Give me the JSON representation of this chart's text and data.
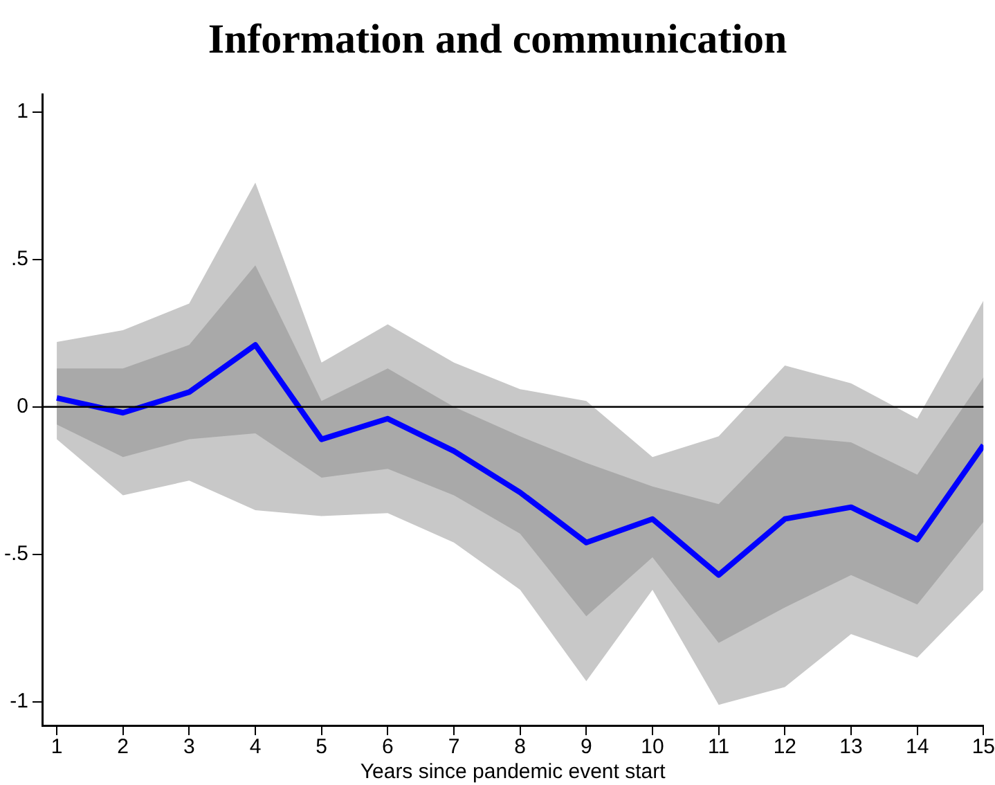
{
  "chart_data": {
    "type": "line",
    "title": "Information and communication",
    "xlabel": "Years since pandemic event start",
    "x": [
      1,
      2,
      3,
      4,
      5,
      6,
      7,
      8,
      9,
      10,
      11,
      12,
      13,
      14,
      15
    ],
    "series": [
      {
        "color": "#c8c8c8",
        "values": [
          null,
          null,
          null,
          null,
          null,
          null,
          null,
          null,
          null,
          null,
          null,
          null,
          null,
          null,
          null
        ],
        "upper": [
          0.22,
          0.26,
          0.35,
          0.76,
          0.15,
          0.28,
          0.15,
          0.06,
          0.02,
          -0.17,
          -0.1,
          0.14,
          0.08,
          -0.04,
          0.36
        ],
        "lower": [
          -0.11,
          -0.3,
          -0.25,
          -0.35,
          -0.37,
          -0.36,
          -0.46,
          -0.62,
          -0.93,
          -0.62,
          -1.01,
          -0.95,
          -0.77,
          -0.85,
          -0.62
        ]
      },
      {
        "color": "#a9a9a9",
        "values": [
          null,
          null,
          null,
          null,
          null,
          null,
          null,
          null,
          null,
          null,
          null,
          null,
          null,
          null,
          null
        ],
        "upper": [
          0.13,
          0.13,
          0.21,
          0.48,
          0.02,
          0.13,
          0.0,
          -0.1,
          -0.19,
          -0.27,
          -0.33,
          -0.1,
          -0.12,
          -0.23,
          0.1
        ],
        "lower": [
          -0.06,
          -0.17,
          -0.11,
          -0.09,
          -0.24,
          -0.21,
          -0.3,
          -0.43,
          -0.71,
          -0.51,
          -0.8,
          -0.68,
          -0.57,
          -0.67,
          -0.39
        ]
      },
      {
        "color": "#0000ff",
        "values": [
          0.03,
          -0.02,
          0.05,
          0.21,
          -0.11,
          -0.04,
          -0.15,
          -0.29,
          -0.46,
          -0.38,
          -0.57,
          -0.38,
          -0.34,
          -0.45,
          -0.13
        ]
      }
    ],
    "xlim": [
      0.78,
      15
    ],
    "xticks": [
      1,
      2,
      3,
      4,
      5,
      6,
      7,
      8,
      9,
      10,
      11,
      12,
      13,
      14,
      15
    ],
    "ylim": [
      -1.08,
      1.06
    ],
    "yticks": [
      {
        "value": -1,
        "label": "-1"
      },
      {
        "value": -0.5,
        "label": "-.5"
      },
      0,
      {
        "value": 0.5,
        "label": ".5"
      },
      1
    ],
    "ref_lines": [
      {
        "axis": "y",
        "value": 0,
        "color": "#000000"
      }
    ],
    "legend": false,
    "marker": "none",
    "line_style": "solid"
  }
}
